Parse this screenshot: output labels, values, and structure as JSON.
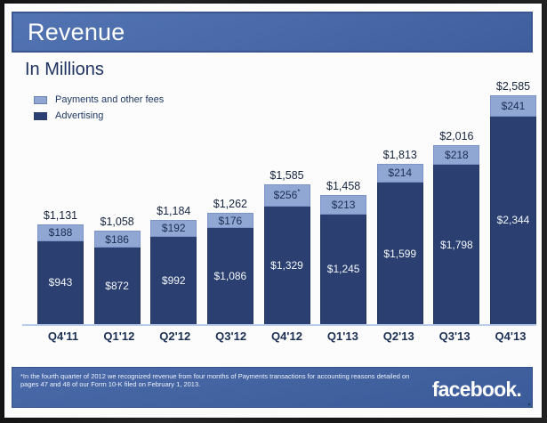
{
  "header": {
    "title": "Revenue"
  },
  "chart": {
    "subtitle": "In Millions"
  },
  "legend": [
    {
      "label": "Payments and other fees",
      "color": "#91a7d3"
    },
    {
      "label": "Advertising",
      "color": "#2b4070"
    }
  ],
  "chart_data": {
    "type": "bar",
    "stacked": true,
    "title": "Revenue",
    "subtitle": "In Millions",
    "unit": "USD millions",
    "legend_position": "top-left",
    "grid": false,
    "categories": [
      "Q4'11",
      "Q1'12",
      "Q2'12",
      "Q3'12",
      "Q4'12",
      "Q1'13",
      "Q2'13",
      "Q3'13",
      "Q4'13"
    ],
    "series": [
      {
        "name": "Advertising",
        "color": "#2b4070",
        "values": [
          943,
          872,
          992,
          1086,
          1329,
          1245,
          1599,
          1798,
          2344
        ],
        "labels": [
          "$943",
          "$872",
          "$992",
          "$1,086",
          "$1,329",
          "$1,245",
          "$1,599",
          "$1,798",
          "$2,344"
        ]
      },
      {
        "name": "Payments and other fees",
        "color": "#91a7d3",
        "values": [
          188,
          186,
          192,
          176,
          256,
          213,
          214,
          218,
          241
        ],
        "labels": [
          "$188",
          "$186",
          "$192",
          "$176",
          "$256*",
          "$213",
          "$214",
          "$218",
          "$241"
        ]
      }
    ],
    "totals": [
      1131,
      1058,
      1184,
      1262,
      1585,
      1458,
      1813,
      2016,
      2585
    ],
    "totals_labels": [
      "$1,131",
      "$1,058",
      "$1,184",
      "$1,262",
      "$1,585",
      "$1,458",
      "$1,813",
      "$2,016",
      "$2,585"
    ]
  },
  "footer": {
    "footnote": "*In the fourth quarter of 2012 we recognized revenue from four months of Payments transactions for accounting reasons detailed on pages 47 and 48 of our Form 10-K filed on February 1, 2013.",
    "logo": "facebook."
  },
  "colors": {
    "header_blue": "#4a6aa9",
    "payments": "#91a7d3",
    "advertising": "#2b4070",
    "total_label": "#16243d",
    "axis_label": "#1b2f55",
    "baseline": "#b9cce9"
  }
}
